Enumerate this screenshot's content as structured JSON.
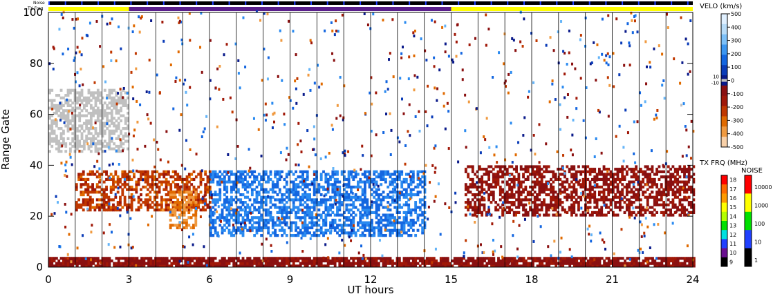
{
  "chart_data": {
    "type": "heatmap",
    "title": "",
    "xlabel": "UT hours",
    "ylabel": "Range Gate",
    "xlim": [
      0,
      24
    ],
    "ylim": [
      0,
      100
    ],
    "x_ticks": [
      "0",
      "3",
      "6",
      "9",
      "12",
      "15",
      "18",
      "21",
      "24"
    ],
    "y_ticks": [
      "0",
      "20",
      "40",
      "60",
      "80",
      "100"
    ],
    "grid": "vertical hour lines",
    "status_bars": {
      "noise_label": "Noise",
      "txfreq_label": "TX Freq",
      "txfreq_segments": [
        {
          "start": 0,
          "end": 3,
          "color": "#ffff00"
        },
        {
          "start": 3,
          "end": 15,
          "color": "#5a1f8c"
        },
        {
          "start": 15,
          "end": 24,
          "color": "#ffff00"
        }
      ]
    },
    "velocity_colorbar": {
      "title": "VELO (km/s)",
      "ticks": [
        "500",
        "400",
        "300",
        "200",
        "100",
        "0",
        "-100",
        "-200",
        "-300",
        "-400",
        "-500"
      ],
      "inner_labels": [
        "10",
        "-10"
      ]
    },
    "txfreq_colorbar": {
      "title": "TX FRQ (MHz)",
      "ticks": [
        "18",
        "17",
        "16",
        "15",
        "14",
        "13",
        "12",
        "11",
        "10",
        "9"
      ],
      "colors": [
        "#ff0000",
        "#ff6a00",
        "#ff9a00",
        "#ffff00",
        "#b4ff00",
        "#00e000",
        "#00e0e0",
        "#2040ff",
        "#6a1090",
        "#000000"
      ]
    },
    "noise_colorbar": {
      "title": "NOISE",
      "ticks": [
        "10000",
        "1000",
        "100",
        "10",
        "1"
      ],
      "colors": [
        "#ff0000",
        "#ffff00",
        "#00e000",
        "#2040ff",
        "#000000"
      ]
    },
    "series": [
      {
        "name": "",
        "description_gate_ranges": [
          {
            "t0": 0.0,
            "t1": 24.0,
            "g0": 0,
            "g1": 4,
            "v": -60
          },
          {
            "t0": 1.0,
            "t1": 6.0,
            "g0": 22,
            "g1": 38,
            "v": -250
          },
          {
            "t0": 4.5,
            "t1": 5.5,
            "g0": 15,
            "g1": 30,
            "v": -420
          },
          {
            "t0": 6.0,
            "t1": 14.0,
            "g0": 12,
            "g1": 38,
            "v": 300
          },
          {
            "t0": 0.0,
            "t1": 3.0,
            "g0": 45,
            "g1": 70,
            "v": 0
          },
          {
            "t0": 15.5,
            "t1": 24.0,
            "g0": 20,
            "g1": 40,
            "v": -80
          }
        ]
      }
    ]
  }
}
